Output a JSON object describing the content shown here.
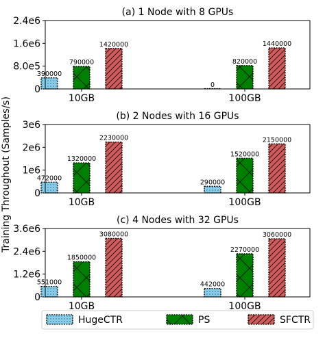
{
  "figure": {
    "ylabel": "Training Throughout (Samples/s)"
  },
  "legend": {
    "placement": "bottom",
    "entries": [
      {
        "name": "HugeCTR",
        "color": "#87ceeb",
        "pattern": "dots"
      },
      {
        "name": "PS",
        "color": "#008000",
        "pattern": "cross"
      },
      {
        "name": "SFCTR",
        "color": "#cd5c5c",
        "pattern": "hatch"
      }
    ]
  },
  "chart_data": [
    {
      "type": "bar",
      "title": "(a) 1 Node with 8 GPUs",
      "categories": [
        "10GB",
        "100GB"
      ],
      "ylim": [
        0,
        2400000
      ],
      "yticks": [
        0,
        800000,
        1600000,
        2400000
      ],
      "yticklabels": [
        "0",
        "8.0e5",
        "1.6e6",
        "2.4e6"
      ],
      "series": [
        {
          "name": "HugeCTR",
          "values": [
            390000,
            0
          ],
          "labels": [
            "390000",
            "0"
          ]
        },
        {
          "name": "PS",
          "values": [
            790000,
            820000
          ],
          "labels": [
            "790000",
            "820000"
          ]
        },
        {
          "name": "SFCTR",
          "values": [
            1420000,
            1440000
          ],
          "labels": [
            "1420000",
            "1440000"
          ]
        }
      ]
    },
    {
      "type": "bar",
      "title": "(b) 2 Nodes with 16 GPUs",
      "categories": [
        "10GB",
        "100GB"
      ],
      "ylim": [
        0,
        3000000
      ],
      "yticks": [
        0,
        1000000,
        2000000,
        3000000
      ],
      "yticklabels": [
        "0",
        "1e6",
        "2e6",
        "3e6"
      ],
      "series": [
        {
          "name": "HugeCTR",
          "values": [
            472000,
            290000
          ],
          "labels": [
            "472000",
            "290000"
          ]
        },
        {
          "name": "PS",
          "values": [
            1320000,
            1520000
          ],
          "labels": [
            "1320000",
            "1520000"
          ]
        },
        {
          "name": "SFCTR",
          "values": [
            2230000,
            2150000
          ],
          "labels": [
            "2230000",
            "2150000"
          ]
        }
      ]
    },
    {
      "type": "bar",
      "title": "(c) 4 Nodes with 32 GPUs",
      "categories": [
        "10GB",
        "100GB"
      ],
      "ylim": [
        0,
        3600000
      ],
      "yticks": [
        0,
        1200000,
        2400000,
        3600000
      ],
      "yticklabels": [
        "0",
        "1.2e6",
        "2.4e6",
        "3.6e6"
      ],
      "series": [
        {
          "name": "HugeCTR",
          "values": [
            551000,
            442000
          ],
          "labels": [
            "551000",
            "442000"
          ]
        },
        {
          "name": "PS",
          "values": [
            1850000,
            2270000
          ],
          "labels": [
            "1850000",
            "2270000"
          ]
        },
        {
          "name": "SFCTR",
          "values": [
            3080000,
            3060000
          ],
          "labels": [
            "3080000",
            "3060000"
          ]
        }
      ]
    }
  ]
}
